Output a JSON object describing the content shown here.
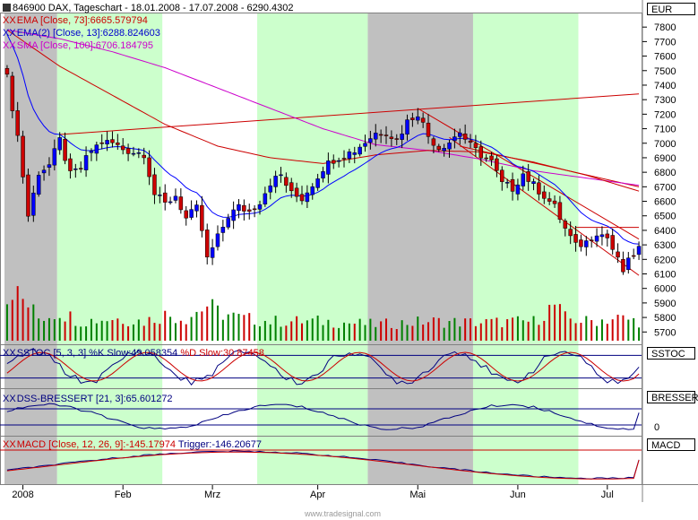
{
  "header": {
    "title": "846900 DAX, Tageschart - 18.01.2008 - 17.07.2008 - 6290.4302",
    "currency": "EUR"
  },
  "legend": {
    "ema73": "EMA [Close, 73]:6665.579794",
    "ema13": "EMA(2) [Close, 13]:6288.824603",
    "sma100": "SMA [Close, 100]:6706.184795",
    "sstoc": "SSTOC [5, 3, 3] %K Slow:49.058354",
    "sstoc_d": "%D Slow:30.87458",
    "dss": "DSS-BRESSERT [21, 3]:65.601272",
    "macd": "MACD [Close, 12, 26, 9]:-145.17974",
    "macd_trigger": "Trigger:-146.20677",
    "xx": "XX"
  },
  "panels": {
    "sstoc": "SSTOC",
    "dss": "BRESSERT",
    "dss_zero": "0",
    "macd": "MACD"
  },
  "watermark": "www.tradesignal.com",
  "colors": {
    "bull": "#0000ff",
    "bear": "#cc0000",
    "vol_up": "#008000",
    "vol_down": "#cc0000",
    "ema73": "#cc0000",
    "ema13": "#0000ff",
    "sma100": "#cc00cc",
    "band_green": "#ccffcc",
    "band_gray": "#c0c0c0"
  },
  "chart_data": {
    "type": "candlestick",
    "y_ticks": [
      5700,
      5800,
      5900,
      6000,
      6100,
      6200,
      6300,
      6400,
      6500,
      6600,
      6700,
      6800,
      6900,
      7000,
      7100,
      7200,
      7300,
      7400,
      7500,
      7600,
      7700,
      7800
    ],
    "ylim": [
      5640,
      7900
    ],
    "x_ticks": [
      "2008",
      "Feb",
      "Mrz",
      "Apr",
      "Mai",
      "Jun",
      "Jul"
    ],
    "x_tick_index": [
      3,
      22,
      39,
      59,
      78,
      97,
      114
    ],
    "n_bars": 121,
    "price_anchors": [
      [
        0,
        7450
      ],
      [
        2,
        7050
      ],
      [
        4,
        6500
      ],
      [
        6,
        6800
      ],
      [
        8,
        6850
      ],
      [
        10,
        7020
      ],
      [
        12,
        6780
      ],
      [
        14,
        6830
      ],
      [
        16,
        6950
      ],
      [
        18,
        7010
      ],
      [
        20,
        7000
      ],
      [
        22,
        6960
      ],
      [
        24,
        6940
      ],
      [
        26,
        6930
      ],
      [
        28,
        6650
      ],
      [
        30,
        6580
      ],
      [
        32,
        6640
      ],
      [
        34,
        6480
      ],
      [
        36,
        6550
      ],
      [
        37,
        6400
      ],
      [
        38,
        6200
      ],
      [
        40,
        6350
      ],
      [
        42,
        6500
      ],
      [
        44,
        6560
      ],
      [
        46,
        6530
      ],
      [
        48,
        6600
      ],
      [
        50,
        6730
      ],
      [
        52,
        6780
      ],
      [
        54,
        6650
      ],
      [
        56,
        6620
      ],
      [
        58,
        6720
      ],
      [
        60,
        6830
      ],
      [
        62,
        6890
      ],
      [
        64,
        6920
      ],
      [
        66,
        6950
      ],
      [
        68,
        7010
      ],
      [
        70,
        7070
      ],
      [
        72,
        7080
      ],
      [
        74,
        7020
      ],
      [
        76,
        7150
      ],
      [
        78,
        7210
      ],
      [
        80,
        7050
      ],
      [
        82,
        6970
      ],
      [
        84,
        7010
      ],
      [
        86,
        7080
      ],
      [
        88,
        6980
      ],
      [
        90,
        6920
      ],
      [
        92,
        6870
      ],
      [
        94,
        6720
      ],
      [
        96,
        6690
      ],
      [
        98,
        6790
      ],
      [
        100,
        6710
      ],
      [
        102,
        6640
      ],
      [
        104,
        6560
      ],
      [
        106,
        6410
      ],
      [
        108,
        6290
      ],
      [
        110,
        6320
      ],
      [
        112,
        6390
      ],
      [
        114,
        6350
      ],
      [
        116,
        6190
      ],
      [
        117,
        6120
      ],
      [
        118,
        6180
      ],
      [
        120,
        6290
      ]
    ],
    "volume_anchors": [
      [
        0,
        0.65
      ],
      [
        1,
        0.85
      ],
      [
        2,
        0.7
      ],
      [
        4,
        0.55
      ],
      [
        6,
        0.35
      ],
      [
        10,
        0.45
      ],
      [
        14,
        0.3
      ],
      [
        20,
        0.35
      ],
      [
        26,
        0.3
      ],
      [
        30,
        0.4
      ],
      [
        34,
        0.35
      ],
      [
        38,
        0.55
      ],
      [
        40,
        0.45
      ],
      [
        44,
        0.35
      ],
      [
        50,
        0.3
      ],
      [
        60,
        0.3
      ],
      [
        70,
        0.25
      ],
      [
        80,
        0.3
      ],
      [
        90,
        0.28
      ],
      [
        100,
        0.3
      ],
      [
        104,
        0.55
      ],
      [
        106,
        0.35
      ],
      [
        110,
        0.3
      ],
      [
        116,
        0.35
      ],
      [
        120,
        0.3
      ]
    ],
    "ema73_anchors": [
      [
        0,
        7780
      ],
      [
        10,
        7530
      ],
      [
        20,
        7330
      ],
      [
        30,
        7130
      ],
      [
        40,
        6980
      ],
      [
        50,
        6900
      ],
      [
        60,
        6860
      ],
      [
        70,
        6920
      ],
      [
        80,
        6950
      ],
      [
        90,
        6940
      ],
      [
        100,
        6870
      ],
      [
        110,
        6780
      ],
      [
        120,
        6670
      ]
    ],
    "sma100_anchors": [
      [
        0,
        7780
      ],
      [
        10,
        7720
      ],
      [
        20,
        7630
      ],
      [
        30,
        7520
      ],
      [
        40,
        7380
      ],
      [
        50,
        7240
      ],
      [
        60,
        7100
      ],
      [
        70,
        6990
      ],
      [
        80,
        6950
      ],
      [
        90,
        6890
      ],
      [
        100,
        6810
      ],
      [
        110,
        6760
      ],
      [
        120,
        6710
      ]
    ],
    "trendlines": [
      {
        "from": [
          10,
          7060
        ],
        "to": [
          120,
          7340
        ]
      },
      {
        "from": [
          78,
          7240
        ],
        "to": [
          120,
          6340
        ]
      },
      {
        "from": [
          84,
          7040
        ],
        "to": [
          120,
          6090
        ]
      },
      {
        "from": [
          86,
          6980
        ],
        "to": [
          120,
          6700
        ]
      },
      {
        "from": [
          108,
          6420
        ],
        "to": [
          120,
          6420
        ]
      }
    ],
    "bands": [
      {
        "from": 0,
        "to": 10,
        "fill": "gray"
      },
      {
        "from": 10,
        "to": 30,
        "fill": "green"
      },
      {
        "from": 30,
        "to": 48,
        "fill": "white"
      },
      {
        "from": 48,
        "to": 69,
        "fill": "green"
      },
      {
        "from": 69,
        "to": 89,
        "fill": "gray"
      },
      {
        "from": 89,
        "to": 109,
        "fill": "green"
      },
      {
        "from": 109,
        "to": 121,
        "fill": "white"
      }
    ],
    "sstoc_hlines": [
      20,
      80
    ],
    "sstoc_last": {
      "k": 49.058354,
      "d": 30.87458
    },
    "dss_last": 65.601272,
    "macd_last": {
      "macd": -145.17974,
      "trigger": -146.20677
    },
    "last_close": 6290.4302
  }
}
